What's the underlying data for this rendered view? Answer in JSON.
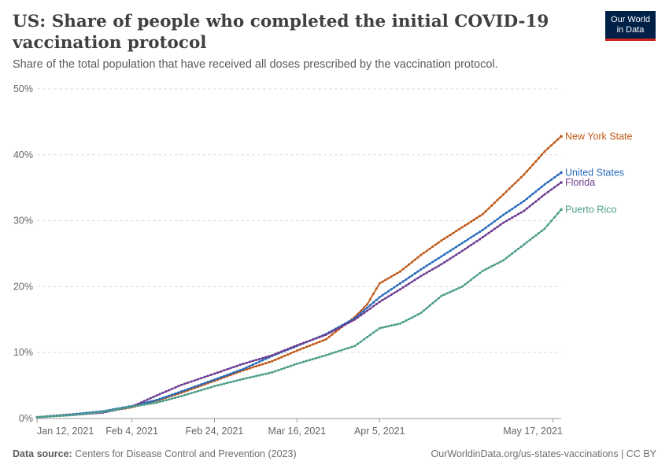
{
  "header": {
    "title": "US: Share of people who completed the initial COVID-19 vaccination protocol",
    "subtitle": "Share of the total population that have received all doses prescribed by the vaccination protocol.",
    "logo_line1": "Our World",
    "logo_line2": "in Data"
  },
  "footer": {
    "source_label": "Data source:",
    "source_text": "Centers for Disease Control and Prevention (2023)",
    "url": "OurWorldinData.org/us-states-vaccinations | CC BY"
  },
  "chart_data": {
    "type": "line",
    "title": "US: Share of people who completed the initial COVID-19 vaccination protocol",
    "x_start": "2021-01-12",
    "x_end": "2021-05-19",
    "x_ticks": [
      {
        "date": "2021-01-12",
        "label": "Jan 12, 2021"
      },
      {
        "date": "2021-02-04",
        "label": "Feb 4, 2021"
      },
      {
        "date": "2021-02-24",
        "label": "Feb 24, 2021"
      },
      {
        "date": "2021-03-16",
        "label": "Mar 16, 2021"
      },
      {
        "date": "2021-04-05",
        "label": "Apr 5, 2021"
      },
      {
        "date": "2021-05-17",
        "label": "May 17, 2021"
      }
    ],
    "ylim": [
      0,
      50
    ],
    "y_ticks": [
      0,
      10,
      20,
      30,
      40,
      50
    ],
    "y_tick_labels": [
      "0%",
      "10%",
      "20%",
      "30%",
      "40%",
      "50%"
    ],
    "grid": "horizontal-dashed",
    "legend": "line-end-labels",
    "series": [
      {
        "name": "New York State",
        "color": "#c05917",
        "points": [
          [
            "2021-01-12",
            0.2
          ],
          [
            "2021-01-20",
            0.6
          ],
          [
            "2021-01-28",
            1.0
          ],
          [
            "2021-02-04",
            1.7
          ],
          [
            "2021-02-10",
            2.7
          ],
          [
            "2021-02-16",
            3.9
          ],
          [
            "2021-02-24",
            5.7
          ],
          [
            "2021-03-03",
            7.3
          ],
          [
            "2021-03-10",
            8.7
          ],
          [
            "2021-03-16",
            10.3
          ],
          [
            "2021-03-23",
            12.0
          ],
          [
            "2021-03-30",
            15.4
          ],
          [
            "2021-04-02",
            17.3
          ],
          [
            "2021-04-05",
            20.5
          ],
          [
            "2021-04-10",
            22.3
          ],
          [
            "2021-04-15",
            24.8
          ],
          [
            "2021-04-20",
            27.0
          ],
          [
            "2021-04-25",
            29.0
          ],
          [
            "2021-04-30",
            31.0
          ],
          [
            "2021-05-05",
            34.0
          ],
          [
            "2021-05-10",
            37.0
          ],
          [
            "2021-05-15",
            40.5
          ],
          [
            "2021-05-19",
            42.8
          ]
        ]
      },
      {
        "name": "United States",
        "color": "#286bbb",
        "points": [
          [
            "2021-01-12",
            0.2
          ],
          [
            "2021-01-20",
            0.6
          ],
          [
            "2021-01-28",
            1.1
          ],
          [
            "2021-02-04",
            1.9
          ],
          [
            "2021-02-10",
            2.8
          ],
          [
            "2021-02-16",
            4.1
          ],
          [
            "2021-02-24",
            5.9
          ],
          [
            "2021-03-03",
            7.5
          ],
          [
            "2021-03-10",
            9.5
          ],
          [
            "2021-03-16",
            11.0
          ],
          [
            "2021-03-23",
            12.8
          ],
          [
            "2021-03-30",
            15.2
          ],
          [
            "2021-04-05",
            18.4
          ],
          [
            "2021-04-10",
            20.5
          ],
          [
            "2021-04-15",
            22.6
          ],
          [
            "2021-04-20",
            24.6
          ],
          [
            "2021-04-25",
            26.6
          ],
          [
            "2021-04-30",
            28.6
          ],
          [
            "2021-05-05",
            30.9
          ],
          [
            "2021-05-10",
            33.0
          ],
          [
            "2021-05-15",
            35.5
          ],
          [
            "2021-05-19",
            37.3
          ]
        ]
      },
      {
        "name": "Florida",
        "color": "#6d3e91",
        "points": [
          [
            "2021-01-12",
            0.2
          ],
          [
            "2021-01-20",
            0.5
          ],
          [
            "2021-01-28",
            0.9
          ],
          [
            "2021-02-04",
            1.8
          ],
          [
            "2021-02-10",
            3.5
          ],
          [
            "2021-02-16",
            5.1
          ],
          [
            "2021-02-24",
            6.8
          ],
          [
            "2021-03-03",
            8.3
          ],
          [
            "2021-03-10",
            9.6
          ],
          [
            "2021-03-16",
            11.1
          ],
          [
            "2021-03-23",
            12.7
          ],
          [
            "2021-03-30",
            15.0
          ],
          [
            "2021-04-05",
            17.7
          ],
          [
            "2021-04-10",
            19.6
          ],
          [
            "2021-04-15",
            21.6
          ],
          [
            "2021-04-20",
            23.4
          ],
          [
            "2021-04-25",
            25.4
          ],
          [
            "2021-04-30",
            27.5
          ],
          [
            "2021-05-05",
            29.7
          ],
          [
            "2021-05-10",
            31.5
          ],
          [
            "2021-05-15",
            34.0
          ],
          [
            "2021-05-19",
            35.8
          ]
        ]
      },
      {
        "name": "Puerto Rico",
        "color": "#4c9e8b",
        "points": [
          [
            "2021-01-12",
            0.2
          ],
          [
            "2021-01-20",
            0.5
          ],
          [
            "2021-01-28",
            1.0
          ],
          [
            "2021-02-04",
            1.8
          ],
          [
            "2021-02-10",
            2.4
          ],
          [
            "2021-02-16",
            3.4
          ],
          [
            "2021-02-24",
            4.9
          ],
          [
            "2021-03-03",
            6.0
          ],
          [
            "2021-03-10",
            7.0
          ],
          [
            "2021-03-16",
            8.3
          ],
          [
            "2021-03-23",
            9.6
          ],
          [
            "2021-03-30",
            11.0
          ],
          [
            "2021-04-05",
            13.7
          ],
          [
            "2021-04-10",
            14.4
          ],
          [
            "2021-04-15",
            16.0
          ],
          [
            "2021-04-20",
            18.6
          ],
          [
            "2021-04-25",
            20.0
          ],
          [
            "2021-04-30",
            22.4
          ],
          [
            "2021-05-05",
            24.0
          ],
          [
            "2021-05-10",
            26.4
          ],
          [
            "2021-05-15",
            28.8
          ],
          [
            "2021-05-19",
            31.7
          ]
        ]
      }
    ]
  }
}
